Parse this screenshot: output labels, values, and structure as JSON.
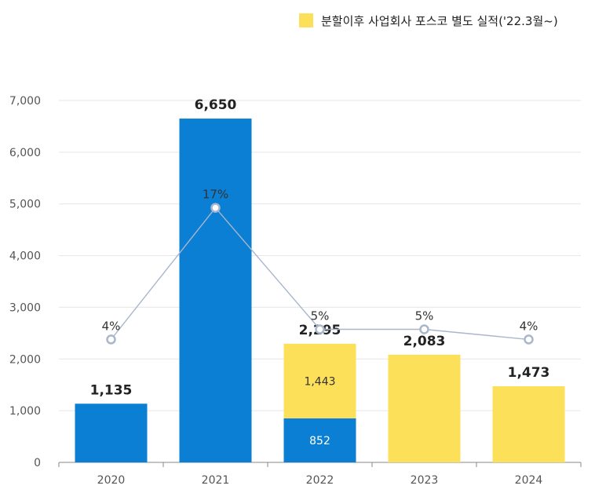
{
  "chart_data": {
    "type": "bar",
    "categories": [
      "2020",
      "2021",
      "2022",
      "2023",
      "2024"
    ],
    "series": [
      {
        "name": "",
        "color": "#0a7fd4",
        "values": [
          1135,
          6650,
          852,
          0,
          0
        ],
        "labels": [
          "",
          "",
          "852",
          "",
          ""
        ]
      },
      {
        "name": "분할이후 사업회사 포스코 별도 실적('22.3월~)",
        "color": "#fde05a",
        "values": [
          0,
          0,
          1443,
          2083,
          1473
        ],
        "labels": [
          "",
          "",
          "1,443",
          "",
          ""
        ]
      }
    ],
    "totals": [
      1135,
      6650,
      2295,
      2083,
      1473
    ],
    "total_labels": [
      "1,135",
      "6,650",
      "2,295",
      "2,083",
      "1,473"
    ],
    "line": {
      "values": [
        4,
        17,
        5,
        5,
        4
      ],
      "labels": [
        "4%",
        "17%",
        "5%",
        "5%",
        "4%"
      ],
      "color": "#a9b6cc"
    },
    "ylim": [
      0,
      7000
    ],
    "yticks": [
      0,
      1000,
      2000,
      3000,
      4000,
      5000,
      6000,
      7000
    ],
    "ytick_labels": [
      "0",
      "1,000",
      "2,000",
      "3,000",
      "4,000",
      "5,000",
      "6,000",
      "7,000"
    ],
    "grid": true,
    "legend_position": "top-right"
  }
}
